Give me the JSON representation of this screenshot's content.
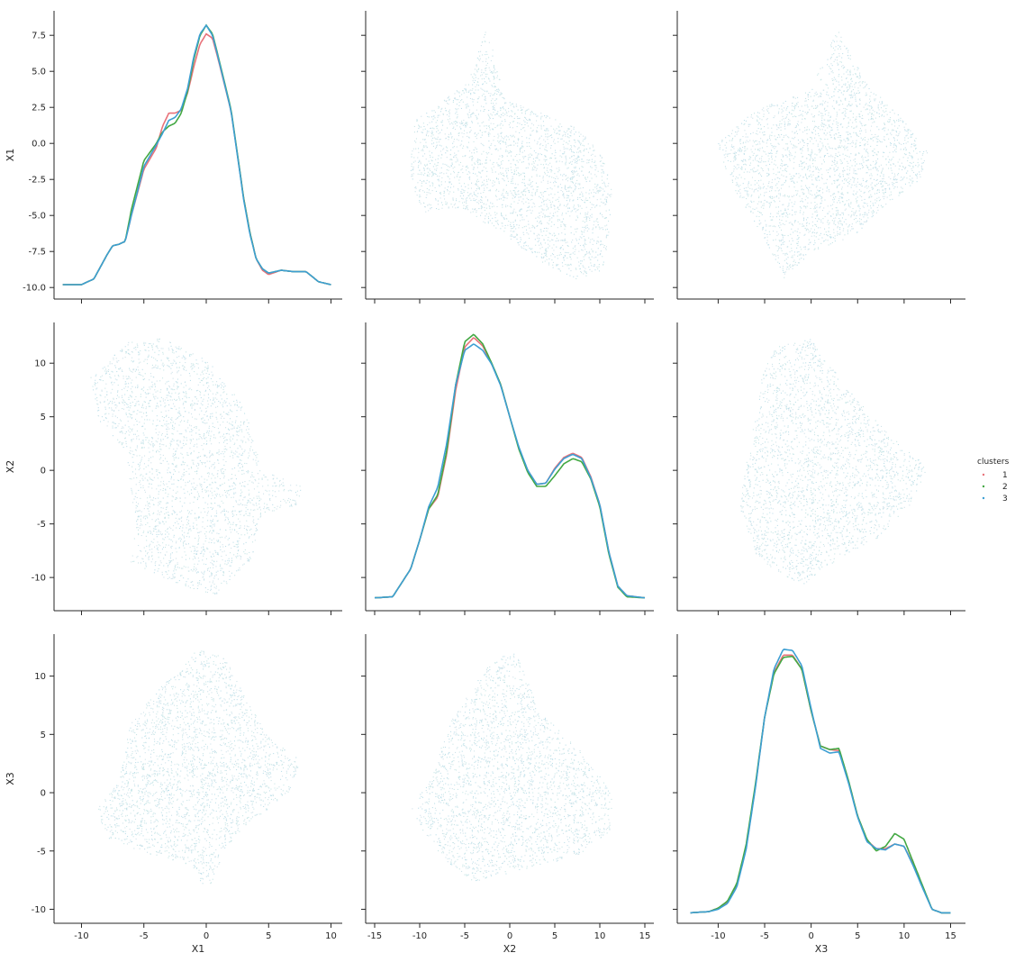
{
  "chart_data": {
    "type": "pairplot",
    "variables": [
      "X1",
      "X2",
      "X3"
    ],
    "axis_labels": {
      "x": [
        "X1",
        "X2",
        "X3"
      ],
      "y": [
        "X1",
        "X2",
        "X3"
      ]
    },
    "legend": {
      "title": "clusters",
      "placement": "right",
      "entries": [
        {
          "label": "1",
          "color": "#e8727a"
        },
        {
          "label": "2",
          "color": "#43a843"
        },
        {
          "label": "3",
          "color": "#3d9fd3"
        }
      ]
    },
    "scatter_color": "#bfe0ea",
    "panels": {
      "x_ticks": [
        [
          "-10",
          "-5",
          "0",
          "5",
          "10"
        ],
        [
          "-15",
          "-10",
          "-5",
          "0",
          "5",
          "10",
          "15"
        ],
        [
          "-10",
          "-5",
          "0",
          "5",
          "10",
          "15"
        ]
      ],
      "y_ticks": [
        [
          "7.5",
          "5.0",
          "2.5",
          "0.0",
          "-2.5",
          "-5.0",
          "-7.5",
          "-10.0"
        ],
        [
          "10",
          "5",
          "0",
          "-5",
          "-10"
        ],
        [
          "10",
          "5",
          "0",
          "-5",
          "-10"
        ]
      ]
    },
    "xlim": [
      [
        -12.2,
        10.9
      ],
      [
        -16.0,
        16.0
      ],
      [
        -14.4,
        16.6
      ]
    ],
    "ylim": [
      [
        -10.8,
        9.2
      ],
      [
        -13.1,
        13.8
      ],
      [
        -11.2,
        13.6
      ]
    ],
    "x_tick_values": [
      [
        -10,
        -5,
        0,
        5,
        10
      ],
      [
        -15,
        -10,
        -5,
        0,
        5,
        10,
        15
      ],
      [
        -10,
        -5,
        0,
        5,
        10,
        15
      ]
    ],
    "y_tick_values": [
      [
        7.5,
        5.0,
        2.5,
        0.0,
        -2.5,
        -5.0,
        -7.5,
        -10.0
      ],
      [
        10,
        5,
        0,
        -5,
        -10
      ],
      [
        10,
        5,
        0,
        -5,
        -10
      ]
    ],
    "diagonal_kde": [
      {
        "variable": "X1",
        "x": [
          -11.5,
          -10,
          -9,
          -8.5,
          -8,
          -7.5,
          -7,
          -6.5,
          -6,
          -5,
          -4,
          -3.5,
          -3,
          -2.5,
          -2,
          -1.5,
          -1,
          -0.5,
          0,
          0.5,
          1,
          2,
          3,
          3.5,
          4,
          4.5,
          5,
          6,
          7,
          8,
          9,
          10
        ],
        "series": [
          {
            "cluster": "1",
            "values": [
              -9.8,
              -9.8,
              -9.4,
              -8.6,
              -7.8,
              -7.1,
              -7.0,
              -6.8,
              -5.0,
              -1.8,
              -0.3,
              1.2,
              2.1,
              2.1,
              2.3,
              3.5,
              5.3,
              6.9,
              7.6,
              7.3,
              5.7,
              2.2,
              -3.8,
              -6.2,
              -8.0,
              -8.8,
              -9.1,
              -8.8,
              -8.9,
              -8.9,
              -9.6,
              -9.8
            ]
          },
          {
            "cluster": "2",
            "values": [
              -9.8,
              -9.8,
              -9.4,
              -8.6,
              -7.8,
              -7.1,
              -7.0,
              -6.8,
              -4.6,
              -1.2,
              0.0,
              0.8,
              1.2,
              1.4,
              2.1,
              3.6,
              5.8,
              7.5,
              8.2,
              7.6,
              5.9,
              2.3,
              -3.8,
              -6.2,
              -8.0,
              -8.7,
              -9.0,
              -8.8,
              -8.9,
              -8.9,
              -9.6,
              -9.8
            ]
          },
          {
            "cluster": "3",
            "values": [
              -9.8,
              -9.8,
              -9.4,
              -8.6,
              -7.8,
              -7.1,
              -7.0,
              -6.8,
              -5.0,
              -1.6,
              -0.1,
              0.7,
              1.6,
              1.8,
              2.4,
              3.8,
              6.0,
              7.6,
              8.2,
              7.5,
              5.8,
              2.2,
              -3.9,
              -6.3,
              -8.0,
              -8.7,
              -9.0,
              -8.8,
              -8.9,
              -8.9,
              -9.6,
              -9.8
            ]
          }
        ]
      },
      {
        "variable": "X2",
        "x": [
          -15,
          -13,
          -11,
          -10,
          -9,
          -8,
          -7,
          -6,
          -5,
          -4,
          -3,
          -2,
          -1,
          0,
          1,
          2,
          3,
          4,
          5,
          6,
          7,
          8,
          9,
          10,
          11,
          12,
          13,
          15
        ],
        "series": [
          {
            "cluster": "1",
            "values": [
              -11.9,
              -11.8,
              -9.2,
              -6.5,
              -3.6,
              -2.5,
              1.5,
              7.5,
              11.5,
              12.4,
              11.6,
              9.9,
              8.0,
              5.0,
              2.1,
              0.0,
              -1.3,
              -1.2,
              0.2,
              1.2,
              1.6,
              1.2,
              -0.6,
              -3.2,
              -7.6,
              -10.8,
              -11.7,
              -11.9
            ]
          },
          {
            "cluster": "2",
            "values": [
              -11.9,
              -11.8,
              -9.2,
              -6.5,
              -3.6,
              -2.3,
              1.8,
              8.0,
              12.0,
              12.7,
              11.8,
              10.0,
              8.0,
              5.0,
              2.0,
              -0.2,
              -1.5,
              -1.5,
              -0.5,
              0.6,
              1.1,
              0.8,
              -0.8,
              -3.4,
              -7.8,
              -10.9,
              -11.8,
              -11.9
            ]
          },
          {
            "cluster": "3",
            "values": [
              -11.9,
              -11.8,
              -9.2,
              -6.5,
              -3.4,
              -1.6,
              2.5,
              8.0,
              11.2,
              11.8,
              11.2,
              9.9,
              7.9,
              5.0,
              2.2,
              0.0,
              -1.3,
              -1.2,
              0.1,
              1.1,
              1.5,
              1.1,
              -0.7,
              -3.2,
              -7.6,
              -10.8,
              -11.7,
              -11.9
            ]
          }
        ]
      },
      {
        "variable": "X3",
        "x": [
          -13,
          -11,
          -10,
          -9,
          -8,
          -7,
          -6,
          -5,
          -4,
          -3,
          -2,
          -1,
          0,
          1,
          2,
          3,
          4,
          5,
          6,
          7,
          8,
          9,
          10,
          11,
          12,
          13,
          14,
          15
        ],
        "series": [
          {
            "cluster": "1",
            "values": [
              -10.3,
              -10.2,
              -9.9,
              -9.4,
              -8.0,
              -4.8,
              0.5,
              6.5,
              10.3,
              11.8,
              11.8,
              10.6,
              7.0,
              4.0,
              3.7,
              3.6,
              1.0,
              -2.0,
              -4.1,
              -4.8,
              -4.8,
              -4.4,
              -4.6,
              -6.2,
              -8.1,
              -10.0,
              -10.3,
              -10.3
            ]
          },
          {
            "cluster": "2",
            "values": [
              -10.3,
              -10.2,
              -9.9,
              -9.3,
              -7.8,
              -4.5,
              0.7,
              6.5,
              10.2,
              11.6,
              11.7,
              10.6,
              7.0,
              4.0,
              3.7,
              3.8,
              1.1,
              -2.0,
              -4.0,
              -5.0,
              -4.6,
              -3.5,
              -4.0,
              -6.0,
              -8.0,
              -10.0,
              -10.3,
              -10.3
            ]
          },
          {
            "cluster": "3",
            "values": [
              -10.3,
              -10.2,
              -10.0,
              -9.5,
              -8.1,
              -4.9,
              0.4,
              6.5,
              10.6,
              12.3,
              12.2,
              10.9,
              7.2,
              3.8,
              3.4,
              3.5,
              0.9,
              -2.1,
              -4.2,
              -4.8,
              -4.9,
              -4.4,
              -4.6,
              -6.3,
              -8.2,
              -10.0,
              -10.3,
              -10.3
            ]
          }
        ]
      }
    ]
  }
}
